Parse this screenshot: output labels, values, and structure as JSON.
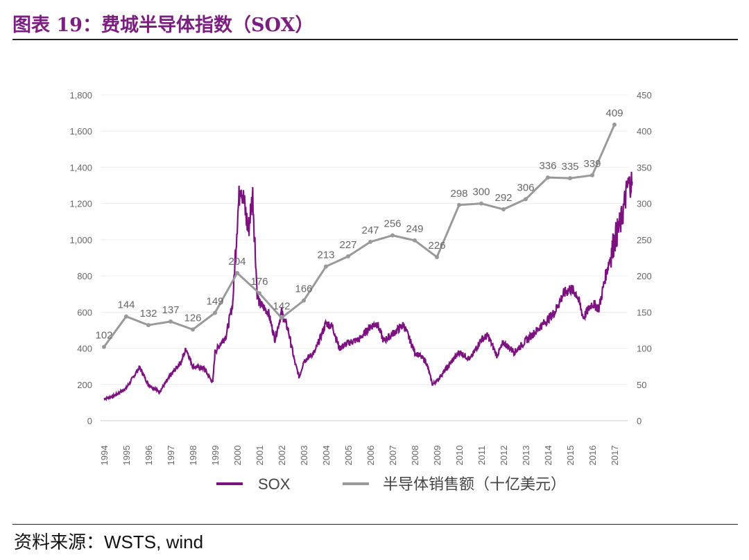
{
  "title": "图表 19：费城半导体指数（SOX）",
  "source": {
    "label": "资料来源：",
    "text": "WSTS, wind"
  },
  "chart_data": {
    "type": "line",
    "title": "",
    "x_categories": [
      "1994",
      "1995",
      "1996",
      "1997",
      "1998",
      "1999",
      "2000",
      "2001",
      "2002",
      "2003",
      "2004",
      "2005",
      "2006",
      "2007",
      "2008",
      "2009",
      "2010",
      "2011",
      "2012",
      "2013",
      "2014",
      "2015",
      "2016",
      "2017"
    ],
    "left_axis": {
      "min": 0,
      "max": 1800,
      "ticks": [
        "0",
        "200",
        "400",
        "600",
        "800",
        "1,000",
        "1,200",
        "1,400",
        "1,600",
        "1,800"
      ]
    },
    "right_axis": {
      "min": 0,
      "max": 450,
      "ticks": [
        "0",
        "50",
        "100",
        "150",
        "200",
        "250",
        "300",
        "350",
        "400",
        "450"
      ]
    },
    "grid": true,
    "legend_position": "bottom",
    "series": [
      {
        "name": "SOX",
        "axis": "left",
        "color": "#7b1280",
        "points": [
          [
            1994,
            120
          ],
          [
            1994.5,
            140
          ],
          [
            1995,
            180
          ],
          [
            1995.6,
            295
          ],
          [
            1996,
            200
          ],
          [
            1996.5,
            160
          ],
          [
            1997,
            250
          ],
          [
            1997.5,
            330
          ],
          [
            1997.7,
            400
          ],
          [
            1998,
            300
          ],
          [
            1998.5,
            290
          ],
          [
            1998.9,
            210
          ],
          [
            1999,
            380
          ],
          [
            1999.5,
            470
          ],
          [
            1999.8,
            650
          ],
          [
            2000,
            1100
          ],
          [
            2000.15,
            1330
          ],
          [
            2000.5,
            1050
          ],
          [
            2000.7,
            1250
          ],
          [
            2000.9,
            700
          ],
          [
            2001,
            650
          ],
          [
            2001.4,
            600
          ],
          [
            2001.7,
            450
          ],
          [
            2002,
            600
          ],
          [
            2002.3,
            500
          ],
          [
            2002.6,
            320
          ],
          [
            2002.8,
            240
          ],
          [
            2003,
            330
          ],
          [
            2003.5,
            380
          ],
          [
            2004,
            540
          ],
          [
            2004.3,
            520
          ],
          [
            2004.6,
            400
          ],
          [
            2005,
            430
          ],
          [
            2005.5,
            450
          ],
          [
            2006,
            520
          ],
          [
            2006.3,
            540
          ],
          [
            2006.6,
            440
          ],
          [
            2007,
            480
          ],
          [
            2007.5,
            530
          ],
          [
            2008,
            380
          ],
          [
            2008.5,
            330
          ],
          [
            2008.8,
            200
          ],
          [
            2009,
            220
          ],
          [
            2009.5,
            300
          ],
          [
            2010,
            380
          ],
          [
            2010.5,
            340
          ],
          [
            2011,
            450
          ],
          [
            2011.3,
            470
          ],
          [
            2011.7,
            360
          ],
          [
            2012,
            430
          ],
          [
            2012.5,
            380
          ],
          [
            2013,
            440
          ],
          [
            2013.5,
            500
          ],
          [
            2014,
            560
          ],
          [
            2014.3,
            600
          ],
          [
            2014.7,
            700
          ],
          [
            2015,
            730
          ],
          [
            2015.3,
            700
          ],
          [
            2015.6,
            570
          ],
          [
            2016,
            650
          ],
          [
            2016.3,
            620
          ],
          [
            2016.6,
            800
          ],
          [
            2017,
            1000
          ],
          [
            2017.3,
            1100
          ],
          [
            2017.6,
            1300
          ],
          [
            2017.8,
            1320
          ]
        ]
      },
      {
        "name": "半导体销售额（十亿美元）",
        "axis": "right",
        "color": "#999999",
        "values": [
          102,
          144,
          132,
          137,
          126,
          149,
          204,
          176,
          142,
          166,
          213,
          227,
          247,
          256,
          249,
          226,
          298,
          300,
          292,
          306,
          336,
          335,
          339,
          409
        ]
      }
    ]
  }
}
